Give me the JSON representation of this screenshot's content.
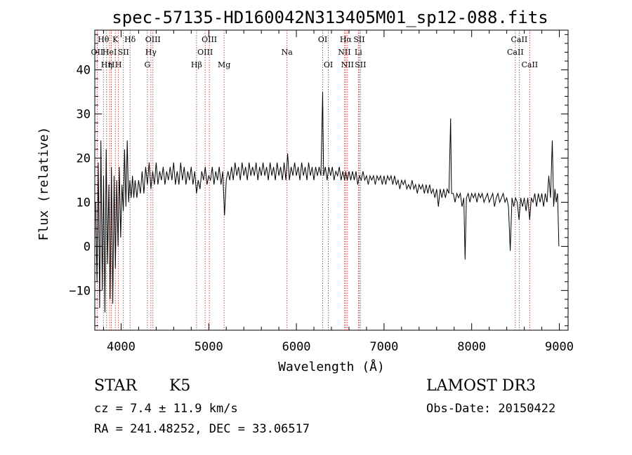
{
  "chart_data": {
    "type": "line",
    "title": "spec-57135-HD160042N313405M01_sp12-088.fits",
    "xlabel": "Wavelength (Å)",
    "ylabel": "Flux (relative)",
    "xlim": [
      3700,
      9100
    ],
    "ylim": [
      -19,
      49
    ],
    "xticks": [
      {
        "value": 4000,
        "label": "4000"
      },
      {
        "value": 5000,
        "label": "5000"
      },
      {
        "value": 6000,
        "label": "6000"
      },
      {
        "value": 7000,
        "label": "7000"
      },
      {
        "value": 8000,
        "label": "8000"
      },
      {
        "value": 9000,
        "label": "9000"
      }
    ],
    "yticks": [
      {
        "value": -10,
        "label": "−10"
      },
      {
        "value": 0,
        "label": "0"
      },
      {
        "value": 10,
        "label": "10"
      },
      {
        "value": 20,
        "label": "20"
      },
      {
        "value": 30,
        "label": "30"
      },
      {
        "value": 40,
        "label": "40"
      }
    ],
    "series": [
      {
        "name": "flux",
        "points": [
          [
            3710,
            10
          ],
          [
            3725,
            -8
          ],
          [
            3740,
            19
          ],
          [
            3755,
            -14
          ],
          [
            3770,
            24
          ],
          [
            3785,
            -10
          ],
          [
            3800,
            16
          ],
          [
            3815,
            -15
          ],
          [
            3830,
            22
          ],
          [
            3845,
            -4
          ],
          [
            3860,
            14
          ],
          [
            3875,
            -12
          ],
          [
            3890,
            18
          ],
          [
            3905,
            -13
          ],
          [
            3920,
            16
          ],
          [
            3935,
            -5
          ],
          [
            3950,
            15
          ],
          [
            3965,
            0
          ],
          [
            3980,
            18
          ],
          [
            3995,
            2
          ],
          [
            4010,
            14
          ],
          [
            4025,
            8
          ],
          [
            4040,
            22
          ],
          [
            4055,
            9
          ],
          [
            4070,
            24
          ],
          [
            4085,
            10
          ],
          [
            4100,
            15
          ],
          [
            4115,
            11
          ],
          [
            4130,
            16
          ],
          [
            4145,
            11
          ],
          [
            4160,
            15
          ],
          [
            4180,
            11
          ],
          [
            4200,
            15
          ],
          [
            4220,
            12
          ],
          [
            4240,
            17
          ],
          [
            4260,
            12
          ],
          [
            4280,
            18
          ],
          [
            4300,
            14
          ],
          [
            4320,
            19
          ],
          [
            4340,
            13
          ],
          [
            4360,
            17
          ],
          [
            4380,
            14
          ],
          [
            4400,
            19
          ],
          [
            4420,
            14
          ],
          [
            4440,
            17
          ],
          [
            4460,
            15
          ],
          [
            4480,
            18
          ],
          [
            4500,
            14
          ],
          [
            4520,
            17
          ],
          [
            4540,
            15
          ],
          [
            4560,
            18
          ],
          [
            4580,
            15
          ],
          [
            4600,
            19
          ],
          [
            4620,
            14
          ],
          [
            4640,
            17
          ],
          [
            4660,
            14
          ],
          [
            4680,
            19
          ],
          [
            4700,
            15
          ],
          [
            4720,
            18
          ],
          [
            4740,
            14
          ],
          [
            4760,
            17
          ],
          [
            4780,
            15
          ],
          [
            4800,
            18
          ],
          [
            4820,
            14
          ],
          [
            4840,
            17
          ],
          [
            4860,
            12
          ],
          [
            4880,
            15
          ],
          [
            4900,
            13
          ],
          [
            4920,
            17
          ],
          [
            4940,
            15
          ],
          [
            4960,
            18
          ],
          [
            4980,
            14
          ],
          [
            5000,
            16
          ],
          [
            5020,
            15
          ],
          [
            5040,
            18
          ],
          [
            5060,
            14
          ],
          [
            5080,
            17
          ],
          [
            5100,
            15
          ],
          [
            5120,
            18
          ],
          [
            5140,
            14
          ],
          [
            5160,
            17
          ],
          [
            5180,
            7
          ],
          [
            5200,
            15
          ],
          [
            5220,
            17
          ],
          [
            5240,
            15
          ],
          [
            5260,
            18
          ],
          [
            5280,
            15
          ],
          [
            5300,
            19
          ],
          [
            5320,
            16
          ],
          [
            5340,
            18
          ],
          [
            5360,
            15
          ],
          [
            5380,
            19
          ],
          [
            5400,
            16
          ],
          [
            5420,
            18
          ],
          [
            5440,
            15
          ],
          [
            5460,
            19
          ],
          [
            5480,
            16
          ],
          [
            5500,
            18
          ],
          [
            5520,
            16
          ],
          [
            5540,
            19
          ],
          [
            5560,
            15
          ],
          [
            5580,
            18
          ],
          [
            5600,
            16
          ],
          [
            5620,
            19
          ],
          [
            5640,
            16
          ],
          [
            5660,
            18
          ],
          [
            5680,
            15
          ],
          [
            5700,
            19
          ],
          [
            5720,
            16
          ],
          [
            5740,
            18
          ],
          [
            5760,
            15
          ],
          [
            5780,
            19
          ],
          [
            5800,
            16
          ],
          [
            5820,
            18
          ],
          [
            5840,
            15
          ],
          [
            5860,
            19
          ],
          [
            5880,
            15
          ],
          [
            5900,
            21
          ],
          [
            5920,
            15
          ],
          [
            5940,
            18
          ],
          [
            5960,
            16
          ],
          [
            5980,
            19
          ],
          [
            6000,
            16
          ],
          [
            6020,
            18
          ],
          [
            6040,
            15
          ],
          [
            6060,
            19
          ],
          [
            6080,
            16
          ],
          [
            6100,
            18
          ],
          [
            6120,
            15
          ],
          [
            6140,
            19
          ],
          [
            6160,
            16
          ],
          [
            6180,
            18
          ],
          [
            6200,
            15
          ],
          [
            6220,
            18
          ],
          [
            6240,
            16
          ],
          [
            6260,
            18
          ],
          [
            6280,
            16
          ],
          [
            6300,
            35
          ],
          [
            6310,
            16
          ],
          [
            6330,
            18
          ],
          [
            6350,
            15
          ],
          [
            6370,
            18
          ],
          [
            6390,
            16
          ],
          [
            6410,
            18
          ],
          [
            6430,
            15
          ],
          [
            6450,
            17
          ],
          [
            6470,
            16
          ],
          [
            6490,
            18
          ],
          [
            6510,
            15
          ],
          [
            6530,
            17
          ],
          [
            6550,
            15
          ],
          [
            6563,
            17
          ],
          [
            6580,
            15
          ],
          [
            6600,
            17
          ],
          [
            6620,
            15
          ],
          [
            6640,
            17
          ],
          [
            6660,
            15
          ],
          [
            6680,
            17
          ],
          [
            6700,
            14
          ],
          [
            6720,
            16
          ],
          [
            6740,
            15
          ],
          [
            6760,
            17
          ],
          [
            6780,
            15
          ],
          [
            6800,
            16
          ],
          [
            6820,
            14
          ],
          [
            6840,
            16
          ],
          [
            6860,
            15
          ],
          [
            6880,
            16
          ],
          [
            6900,
            14
          ],
          [
            6920,
            16
          ],
          [
            6940,
            15
          ],
          [
            6960,
            16
          ],
          [
            6980,
            14
          ],
          [
            7000,
            16
          ],
          [
            7020,
            14
          ],
          [
            7040,
            16
          ],
          [
            7060,
            15
          ],
          [
            7080,
            16
          ],
          [
            7100,
            14
          ],
          [
            7120,
            16
          ],
          [
            7140,
            14
          ],
          [
            7160,
            15
          ],
          [
            7180,
            13
          ],
          [
            7200,
            15
          ],
          [
            7220,
            14
          ],
          [
            7240,
            15
          ],
          [
            7260,
            13
          ],
          [
            7280,
            14
          ],
          [
            7300,
            13
          ],
          [
            7320,
            15
          ],
          [
            7340,
            13
          ],
          [
            7360,
            14
          ],
          [
            7380,
            12
          ],
          [
            7400,
            14
          ],
          [
            7420,
            13
          ],
          [
            7440,
            14
          ],
          [
            7460,
            12
          ],
          [
            7480,
            14
          ],
          [
            7500,
            12
          ],
          [
            7520,
            14
          ],
          [
            7540,
            12
          ],
          [
            7560,
            13
          ],
          [
            7580,
            11
          ],
          [
            7600,
            13
          ],
          [
            7620,
            9
          ],
          [
            7640,
            13
          ],
          [
            7660,
            11
          ],
          [
            7680,
            13
          ],
          [
            7700,
            11
          ],
          [
            7720,
            13
          ],
          [
            7740,
            12
          ],
          [
            7760,
            29
          ],
          [
            7770,
            12
          ],
          [
            7790,
            12
          ],
          [
            7810,
            10
          ],
          [
            7830,
            12
          ],
          [
            7850,
            11
          ],
          [
            7870,
            12
          ],
          [
            7890,
            9
          ],
          [
            7910,
            11
          ],
          [
            7925,
            -3
          ],
          [
            7940,
            11
          ],
          [
            7960,
            12
          ],
          [
            7980,
            10
          ],
          [
            8000,
            12
          ],
          [
            8020,
            11
          ],
          [
            8040,
            12
          ],
          [
            8060,
            10
          ],
          [
            8080,
            12
          ],
          [
            8100,
            11
          ],
          [
            8120,
            12
          ],
          [
            8140,
            10
          ],
          [
            8160,
            11
          ],
          [
            8180,
            12
          ],
          [
            8200,
            10
          ],
          [
            8220,
            11
          ],
          [
            8240,
            12
          ],
          [
            8260,
            9
          ],
          [
            8280,
            11
          ],
          [
            8300,
            12
          ],
          [
            8320,
            10
          ],
          [
            8340,
            11
          ],
          [
            8360,
            12
          ],
          [
            8380,
            10
          ],
          [
            8400,
            11
          ],
          [
            8420,
            9
          ],
          [
            8440,
            -1
          ],
          [
            8460,
            11
          ],
          [
            8480,
            9
          ],
          [
            8500,
            11
          ],
          [
            8520,
            10
          ],
          [
            8540,
            6
          ],
          [
            8560,
            11
          ],
          [
            8580,
            9
          ],
          [
            8600,
            11
          ],
          [
            8620,
            8
          ],
          [
            8640,
            11
          ],
          [
            8662,
            6
          ],
          [
            8680,
            11
          ],
          [
            8700,
            10
          ],
          [
            8720,
            12
          ],
          [
            8740,
            9
          ],
          [
            8760,
            12
          ],
          [
            8780,
            10
          ],
          [
            8800,
            12
          ],
          [
            8820,
            9
          ],
          [
            8840,
            12
          ],
          [
            8860,
            10
          ],
          [
            8880,
            16
          ],
          [
            8900,
            11
          ],
          [
            8920,
            24
          ],
          [
            8935,
            9
          ],
          [
            8950,
            13
          ],
          [
            8965,
            10
          ],
          [
            8980,
            12
          ],
          [
            8995,
            0
          ]
        ]
      }
    ],
    "line_markers": [
      {
        "wave": 3727,
        "label": "OII",
        "row": 1
      },
      {
        "wave": 3798,
        "label": "Hθ",
        "row": 0
      },
      {
        "wave": 3835,
        "label": "Hη",
        "row": 2
      },
      {
        "wave": 3869,
        "label": "HeI",
        "row": 1
      },
      {
        "wave": 3889,
        "label": "H",
        "row": 2
      },
      {
        "wave": 3934,
        "label": "K",
        "row": 0
      },
      {
        "wave": 3970,
        "label": "H",
        "row": 2
      },
      {
        "wave": 4026,
        "label": "SII",
        "row": 1
      },
      {
        "wave": 4102,
        "label": "Hδ",
        "row": 0
      },
      {
        "wave": 4300,
        "label": "G",
        "row": 2
      },
      {
        "wave": 4340,
        "label": "Hγ",
        "row": 1
      },
      {
        "wave": 4363,
        "label": "OIII",
        "row": 0
      },
      {
        "wave": 4861,
        "label": "Hβ",
        "row": 2
      },
      {
        "wave": 4959,
        "label": "OIII",
        "row": 1
      },
      {
        "wave": 5007,
        "label": "OIII",
        "row": 0
      },
      {
        "wave": 5175,
        "label": "Mg",
        "row": 2
      },
      {
        "wave": 5893,
        "label": "Na",
        "row": 1
      },
      {
        "wave": 6300,
        "label": "OI",
        "row": 0
      },
      {
        "wave": 6364,
        "label": "OI",
        "row": 2
      },
      {
        "wave": 6548,
        "label": "NII",
        "row": 1
      },
      {
        "wave": 6563,
        "label": "Hα",
        "row": 0
      },
      {
        "wave": 6583,
        "label": "NII",
        "row": 2
      },
      {
        "wave": 6707,
        "label": "Li",
        "row": 1
      },
      {
        "wave": 6716,
        "label": "SII",
        "row": 0
      },
      {
        "wave": 6731,
        "label": "SII",
        "row": 2
      },
      {
        "wave": 8498,
        "label": "CaII",
        "row": 1
      },
      {
        "wave": 8542,
        "label": "CaII",
        "row": 0
      },
      {
        "wave": 8662,
        "label": "CaII",
        "row": 2
      }
    ]
  },
  "info": {
    "class": "STAR",
    "subclass": "K5",
    "cz": "cz = 7.4 ± 11.9 km/s",
    "coords": "RA = 241.48252, DEC =  33.06517",
    "survey": "LAMOST DR3",
    "obs_date": "Obs-Date: 20150422"
  }
}
